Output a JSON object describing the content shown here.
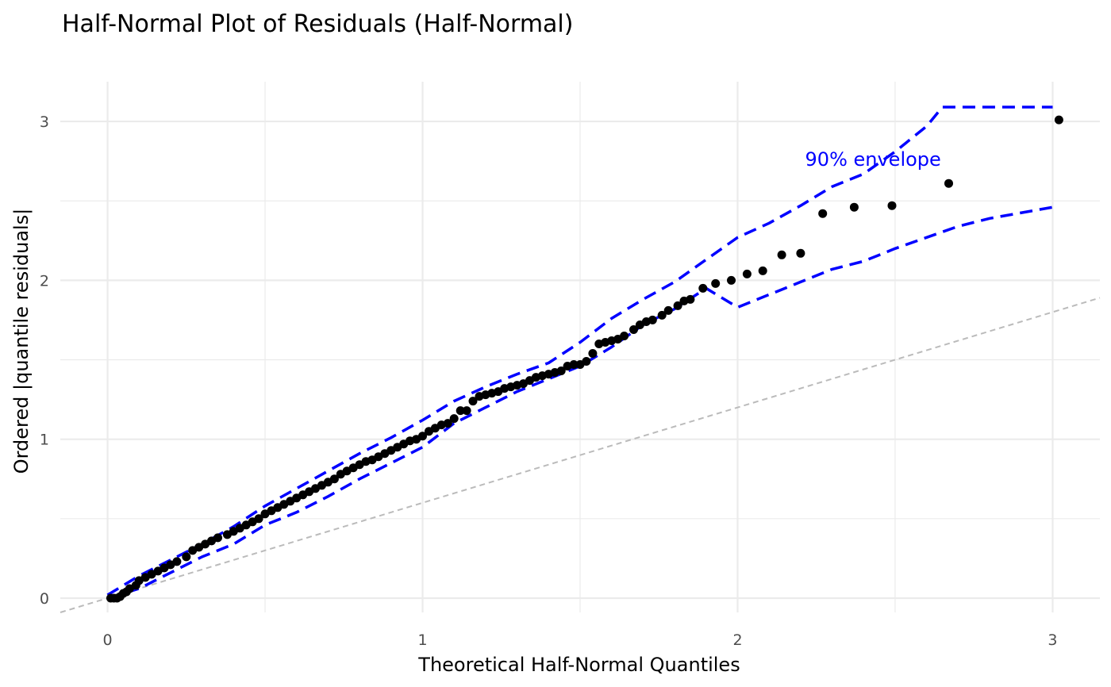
{
  "chart_data": {
    "type": "scatter",
    "title": "Half-Normal Plot of Residuals (Half-Normal)",
    "xlabel": "Theoretical Half-Normal Quantiles",
    "ylabel": "Ordered |quantile residuals|",
    "xlim": [
      -0.15,
      3.15
    ],
    "ylim": [
      -0.09,
      3.25
    ],
    "x_ticks": [
      0,
      1,
      2,
      3
    ],
    "y_ticks": [
      0,
      1,
      2,
      3
    ],
    "grid": true,
    "annotation": {
      "text": "90% envelope",
      "x": 2.43,
      "y": 2.76,
      "color": "#0000ff"
    },
    "reference_line": {
      "intercept": 0,
      "slope": 0.6,
      "color": "#bbbbbb",
      "style": "dashed"
    },
    "colors": {
      "points": "#000000",
      "envelope": "#0000ff",
      "grid": "#ebebeb"
    },
    "points": [
      [
        0.01,
        0.0
      ],
      [
        0.02,
        0.0
      ],
      [
        0.03,
        0.0
      ],
      [
        0.04,
        0.01
      ],
      [
        0.05,
        0.03
      ],
      [
        0.06,
        0.04
      ],
      [
        0.07,
        0.06
      ],
      [
        0.09,
        0.08
      ],
      [
        0.1,
        0.11
      ],
      [
        0.12,
        0.13
      ],
      [
        0.14,
        0.15
      ],
      [
        0.16,
        0.17
      ],
      [
        0.18,
        0.19
      ],
      [
        0.2,
        0.21
      ],
      [
        0.22,
        0.23
      ],
      [
        0.25,
        0.26
      ],
      [
        0.27,
        0.3
      ],
      [
        0.29,
        0.32
      ],
      [
        0.31,
        0.34
      ],
      [
        0.33,
        0.36
      ],
      [
        0.35,
        0.38
      ],
      [
        0.38,
        0.4
      ],
      [
        0.4,
        0.42
      ],
      [
        0.42,
        0.44
      ],
      [
        0.44,
        0.46
      ],
      [
        0.46,
        0.48
      ],
      [
        0.48,
        0.5
      ],
      [
        0.5,
        0.53
      ],
      [
        0.52,
        0.55
      ],
      [
        0.54,
        0.57
      ],
      [
        0.56,
        0.59
      ],
      [
        0.58,
        0.61
      ],
      [
        0.6,
        0.63
      ],
      [
        0.62,
        0.65
      ],
      [
        0.64,
        0.67
      ],
      [
        0.66,
        0.69
      ],
      [
        0.68,
        0.71
      ],
      [
        0.7,
        0.73
      ],
      [
        0.72,
        0.75
      ],
      [
        0.74,
        0.78
      ],
      [
        0.76,
        0.8
      ],
      [
        0.78,
        0.82
      ],
      [
        0.8,
        0.84
      ],
      [
        0.82,
        0.86
      ],
      [
        0.84,
        0.87
      ],
      [
        0.86,
        0.89
      ],
      [
        0.88,
        0.91
      ],
      [
        0.9,
        0.93
      ],
      [
        0.92,
        0.95
      ],
      [
        0.94,
        0.97
      ],
      [
        0.96,
        0.99
      ],
      [
        0.98,
        1.0
      ],
      [
        1.0,
        1.02
      ],
      [
        1.02,
        1.05
      ],
      [
        1.04,
        1.07
      ],
      [
        1.06,
        1.09
      ],
      [
        1.08,
        1.1
      ],
      [
        1.1,
        1.13
      ],
      [
        1.12,
        1.18
      ],
      [
        1.14,
        1.18
      ],
      [
        1.16,
        1.24
      ],
      [
        1.18,
        1.27
      ],
      [
        1.2,
        1.28
      ],
      [
        1.22,
        1.29
      ],
      [
        1.24,
        1.3
      ],
      [
        1.26,
        1.32
      ],
      [
        1.28,
        1.33
      ],
      [
        1.3,
        1.34
      ],
      [
        1.32,
        1.35
      ],
      [
        1.34,
        1.37
      ],
      [
        1.36,
        1.39
      ],
      [
        1.38,
        1.4
      ],
      [
        1.4,
        1.41
      ],
      [
        1.42,
        1.42
      ],
      [
        1.44,
        1.43
      ],
      [
        1.46,
        1.46
      ],
      [
        1.48,
        1.47
      ],
      [
        1.5,
        1.47
      ],
      [
        1.52,
        1.49
      ],
      [
        1.54,
        1.54
      ],
      [
        1.56,
        1.6
      ],
      [
        1.58,
        1.61
      ],
      [
        1.6,
        1.62
      ],
      [
        1.62,
        1.63
      ],
      [
        1.64,
        1.65
      ],
      [
        1.67,
        1.69
      ],
      [
        1.69,
        1.72
      ],
      [
        1.71,
        1.74
      ],
      [
        1.73,
        1.75
      ],
      [
        1.76,
        1.78
      ],
      [
        1.78,
        1.81
      ],
      [
        1.81,
        1.84
      ],
      [
        1.83,
        1.87
      ],
      [
        1.85,
        1.88
      ],
      [
        1.89,
        1.95
      ],
      [
        1.93,
        1.98
      ],
      [
        1.98,
        2.0
      ],
      [
        2.03,
        2.04
      ],
      [
        2.08,
        2.06
      ],
      [
        2.14,
        2.16
      ],
      [
        2.2,
        2.17
      ],
      [
        2.27,
        2.42
      ],
      [
        2.37,
        2.46
      ],
      [
        2.49,
        2.47
      ],
      [
        2.67,
        2.61
      ],
      [
        3.02,
        3.01
      ]
    ],
    "envelope_upper": [
      [
        0.0,
        0.02
      ],
      [
        0.1,
        0.14
      ],
      [
        0.2,
        0.24
      ],
      [
        0.3,
        0.34
      ],
      [
        0.4,
        0.45
      ],
      [
        0.5,
        0.58
      ],
      [
        0.6,
        0.69
      ],
      [
        0.7,
        0.8
      ],
      [
        0.8,
        0.91
      ],
      [
        0.9,
        1.01
      ],
      [
        1.0,
        1.12
      ],
      [
        1.1,
        1.24
      ],
      [
        1.2,
        1.33
      ],
      [
        1.3,
        1.41
      ],
      [
        1.4,
        1.48
      ],
      [
        1.5,
        1.61
      ],
      [
        1.6,
        1.76
      ],
      [
        1.7,
        1.88
      ],
      [
        1.8,
        1.99
      ],
      [
        1.9,
        2.13
      ],
      [
        2.0,
        2.27
      ],
      [
        2.1,
        2.36
      ],
      [
        2.2,
        2.47
      ],
      [
        2.3,
        2.59
      ],
      [
        2.4,
        2.67
      ],
      [
        2.5,
        2.81
      ],
      [
        2.6,
        2.97
      ],
      [
        2.65,
        3.09
      ],
      [
        3.0,
        3.09
      ]
    ],
    "envelope_lower": [
      [
        0.0,
        0.0
      ],
      [
        0.1,
        0.06
      ],
      [
        0.2,
        0.16
      ],
      [
        0.3,
        0.26
      ],
      [
        0.4,
        0.34
      ],
      [
        0.5,
        0.46
      ],
      [
        0.6,
        0.54
      ],
      [
        0.7,
        0.64
      ],
      [
        0.8,
        0.75
      ],
      [
        0.9,
        0.85
      ],
      [
        1.0,
        0.95
      ],
      [
        1.1,
        1.1
      ],
      [
        1.2,
        1.2
      ],
      [
        1.3,
        1.3
      ],
      [
        1.4,
        1.38
      ],
      [
        1.5,
        1.46
      ],
      [
        1.6,
        1.58
      ],
      [
        1.7,
        1.72
      ],
      [
        1.8,
        1.82
      ],
      [
        1.9,
        1.95
      ],
      [
        2.0,
        1.83
      ],
      [
        2.1,
        1.91
      ],
      [
        2.2,
        1.99
      ],
      [
        2.3,
        2.07
      ],
      [
        2.4,
        2.12
      ],
      [
        2.5,
        2.2
      ],
      [
        2.6,
        2.27
      ],
      [
        2.7,
        2.34
      ],
      [
        2.8,
        2.39
      ],
      [
        3.0,
        2.46
      ]
    ]
  }
}
